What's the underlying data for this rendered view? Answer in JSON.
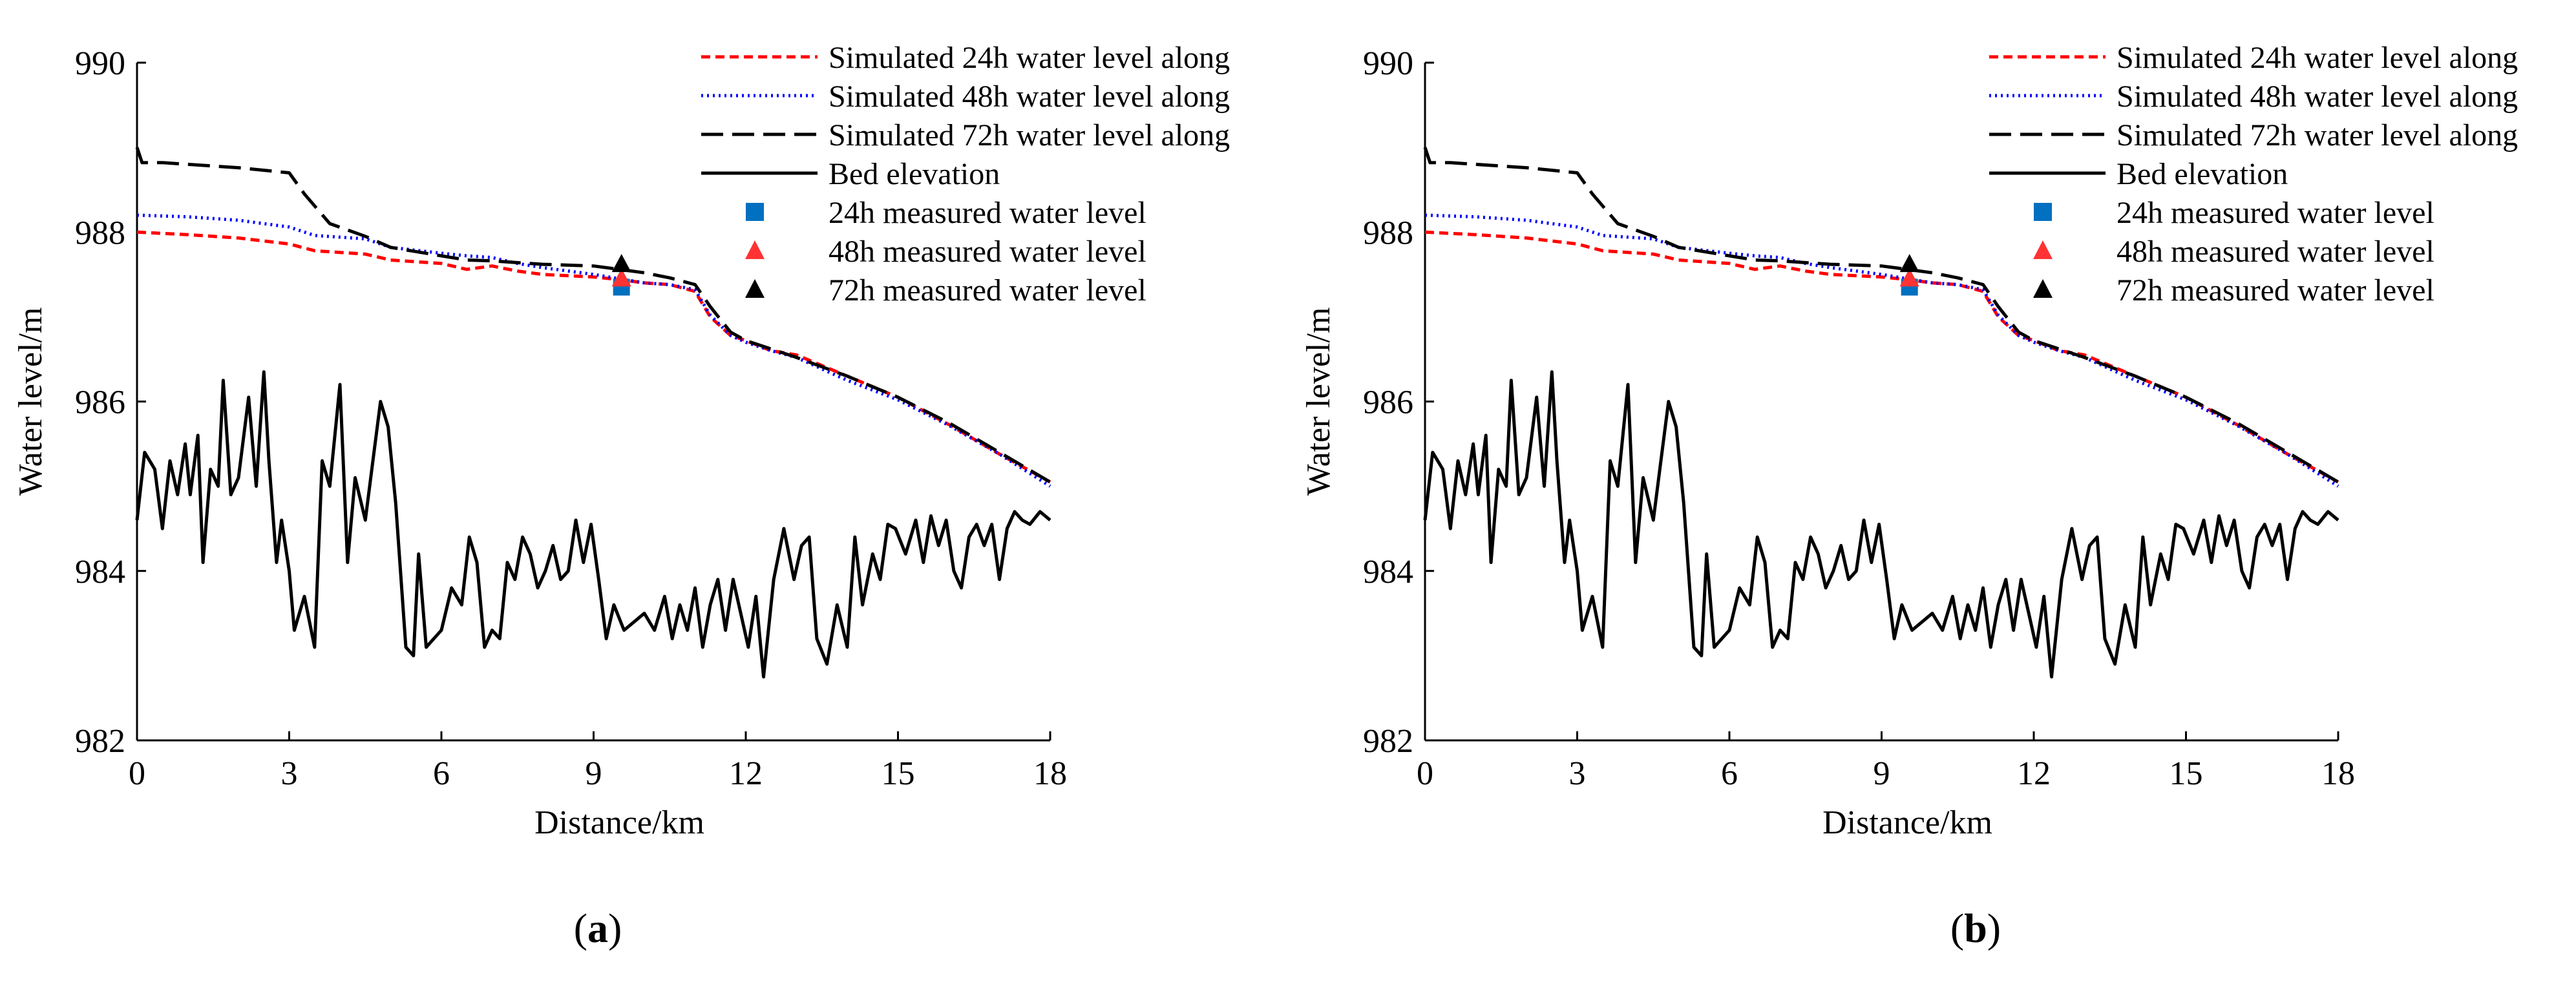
{
  "chart_data": [
    {
      "type": "line",
      "panel": "a",
      "xlabel": "Distance/km",
      "ylabel": "Water level/m",
      "xlim": [
        0,
        18
      ],
      "ylim": [
        982,
        990
      ],
      "xticks": [
        "0",
        "3",
        "6",
        "9",
        "12",
        "15",
        "18"
      ],
      "yticks": [
        "982",
        "984",
        "986",
        "988",
        "990"
      ],
      "legend_position": "top-right",
      "series": [
        {
          "name": "Simulated 24h water level along",
          "color": "#ff0000",
          "style": "short-dash",
          "x": [
            0,
            1,
            2,
            3,
            3.5,
            4.5,
            5,
            6,
            6.5,
            7,
            7.5,
            8,
            9,
            9.5,
            10,
            10.5,
            11,
            11.3,
            11.7,
            12,
            12.5,
            13,
            14,
            15,
            16,
            17,
            18
          ],
          "y": [
            988.0,
            987.97,
            987.93,
            987.86,
            987.78,
            987.74,
            987.67,
            987.63,
            987.56,
            987.6,
            987.54,
            987.5,
            987.47,
            987.44,
            987.4,
            987.38,
            987.3,
            987.0,
            986.78,
            986.72,
            986.6,
            986.55,
            986.3,
            986.05,
            985.73,
            985.38,
            985.05
          ]
        },
        {
          "name": "Simulated 48h water level along",
          "color": "#0000ff",
          "style": "dotted",
          "x": [
            0,
            1,
            2,
            3,
            3.5,
            4.5,
            5,
            6,
            6.5,
            7,
            7.5,
            8,
            9,
            9.5,
            10,
            10.5,
            11,
            11.3,
            11.7,
            12,
            12.5,
            13,
            14,
            15,
            16,
            17,
            18
          ],
          "y": [
            988.2,
            988.18,
            988.14,
            988.06,
            987.96,
            987.92,
            987.82,
            987.75,
            987.72,
            987.7,
            987.63,
            987.58,
            987.5,
            987.45,
            987.4,
            987.38,
            987.32,
            987.02,
            986.78,
            986.7,
            986.6,
            986.52,
            986.25,
            986.02,
            985.72,
            985.38,
            985.0
          ]
        },
        {
          "name": "Simulated 72h water level along",
          "color": "#000000",
          "style": "long-dash",
          "x": [
            0,
            0.1,
            0.5,
            1,
            2,
            3,
            3.3,
            3.8,
            4.5,
            5,
            6,
            6.5,
            7,
            7.5,
            8,
            9,
            9.5,
            10,
            10.5,
            11,
            11.3,
            11.7,
            12,
            12.5,
            13,
            14,
            15,
            16,
            17,
            18
          ],
          "y": [
            989.0,
            988.82,
            988.82,
            988.8,
            988.76,
            988.7,
            988.45,
            988.1,
            987.95,
            987.82,
            987.72,
            987.67,
            987.66,
            987.64,
            987.62,
            987.6,
            987.56,
            987.52,
            987.46,
            987.38,
            987.12,
            986.82,
            986.72,
            986.62,
            986.52,
            986.3,
            986.05,
            985.75,
            985.4,
            985.05
          ]
        },
        {
          "name": "Bed elevation",
          "color": "#000000",
          "style": "solid",
          "x": [
            0,
            0.15,
            0.35,
            0.5,
            0.65,
            0.8,
            0.95,
            1.05,
            1.2,
            1.3,
            1.45,
            1.6,
            1.7,
            1.85,
            2.0,
            2.2,
            2.35,
            2.5,
            2.6,
            2.75,
            2.85,
            3.0,
            3.1,
            3.3,
            3.5,
            3.65,
            3.8,
            4.0,
            4.15,
            4.3,
            4.5,
            4.65,
            4.8,
            4.95,
            5.1,
            5.3,
            5.45,
            5.55,
            5.7,
            5.85,
            6.0,
            6.2,
            6.4,
            6.55,
            6.7,
            6.85,
            7.0,
            7.15,
            7.3,
            7.45,
            7.6,
            7.75,
            7.9,
            8.05,
            8.2,
            8.35,
            8.5,
            8.65,
            8.8,
            8.95,
            9.1,
            9.25,
            9.4,
            9.6,
            9.8,
            10.0,
            10.2,
            10.4,
            10.55,
            10.7,
            10.85,
            11.0,
            11.15,
            11.3,
            11.45,
            11.6,
            11.75,
            11.9,
            12.05,
            12.2,
            12.35,
            12.55,
            12.75,
            12.95,
            13.1,
            13.25,
            13.4,
            13.6,
            13.8,
            14.0,
            14.15,
            14.3,
            14.5,
            14.65,
            14.8,
            14.95,
            15.15,
            15.35,
            15.5,
            15.65,
            15.8,
            15.95,
            16.1,
            16.25,
            16.4,
            16.55,
            16.7,
            16.85,
            17.0,
            17.15,
            17.3,
            17.45,
            17.6,
            17.8,
            18.0
          ],
          "y": [
            984.6,
            985.4,
            985.2,
            984.5,
            985.3,
            984.9,
            985.5,
            984.9,
            985.6,
            984.1,
            985.2,
            985.0,
            986.25,
            984.9,
            985.1,
            986.05,
            985.0,
            986.35,
            985.3,
            984.1,
            984.6,
            984.0,
            983.3,
            983.7,
            983.1,
            985.3,
            985.0,
            986.2,
            984.1,
            985.1,
            984.6,
            985.3,
            986.0,
            985.7,
            984.8,
            983.1,
            983.0,
            984.2,
            983.1,
            983.2,
            983.3,
            983.8,
            983.6,
            984.4,
            984.1,
            983.1,
            983.3,
            983.2,
            984.1,
            983.9,
            984.4,
            984.2,
            983.8,
            984.0,
            984.3,
            983.9,
            984.0,
            984.6,
            984.1,
            984.55,
            983.9,
            983.2,
            983.6,
            983.3,
            983.4,
            983.5,
            983.3,
            983.7,
            983.2,
            983.6,
            983.3,
            983.8,
            983.1,
            983.6,
            983.9,
            983.3,
            983.9,
            983.5,
            983.1,
            983.7,
            982.75,
            983.9,
            984.5,
            983.9,
            984.3,
            984.4,
            983.2,
            982.9,
            983.6,
            983.1,
            984.4,
            983.6,
            984.2,
            983.9,
            984.55,
            984.5,
            984.2,
            984.6,
            984.1,
            984.65,
            984.3,
            984.6,
            984.0,
            983.8,
            984.4,
            984.55,
            984.3,
            984.55,
            983.9,
            984.5,
            984.7,
            984.6,
            984.55,
            984.7,
            984.6
          ]
        }
      ],
      "measured": [
        {
          "name": "24h measured water level",
          "color": "#0070c0",
          "marker": "square",
          "x": 9.55,
          "y": 987.35
        },
        {
          "name": "48h measured water level",
          "color": "#ff3333",
          "marker": "triangle",
          "x": 9.55,
          "y": 987.45
        },
        {
          "name": "72h measured water level",
          "color": "#000000",
          "marker": "triangle",
          "x": 9.55,
          "y": 987.62
        }
      ]
    },
    {
      "type": "line",
      "panel": "b",
      "xlabel": "Distance/km",
      "ylabel": "Water level/m",
      "xlim": [
        0,
        18
      ],
      "ylim": [
        982,
        990
      ],
      "xticks": [
        "0",
        "3",
        "6",
        "9",
        "12",
        "15",
        "18"
      ],
      "yticks": [
        "982",
        "984",
        "986",
        "988",
        "990"
      ],
      "legend_position": "top-right",
      "series": [
        {
          "name": "Simulated 24h water level along",
          "color": "#ff0000",
          "style": "short-dash",
          "x": [
            0,
            1,
            2,
            3,
            3.5,
            4.5,
            5,
            6,
            6.5,
            7,
            7.5,
            8,
            9,
            9.5,
            10,
            10.5,
            11,
            11.3,
            11.7,
            12,
            12.5,
            13,
            14,
            15,
            16,
            17,
            18
          ],
          "y": [
            988.0,
            987.97,
            987.93,
            987.86,
            987.78,
            987.74,
            987.67,
            987.63,
            987.56,
            987.6,
            987.54,
            987.5,
            987.47,
            987.44,
            987.4,
            987.38,
            987.3,
            987.0,
            986.78,
            986.72,
            986.6,
            986.55,
            986.3,
            986.05,
            985.73,
            985.38,
            985.05
          ]
        },
        {
          "name": "Simulated 48h water level along",
          "color": "#0000ff",
          "style": "dotted",
          "x": [
            0,
            1,
            2,
            3,
            3.5,
            4.5,
            5,
            6,
            6.5,
            7,
            7.5,
            8,
            9,
            9.5,
            10,
            10.5,
            11,
            11.3,
            11.7,
            12,
            12.5,
            13,
            14,
            15,
            16,
            17,
            18
          ],
          "y": [
            988.2,
            988.18,
            988.14,
            988.06,
            987.96,
            987.92,
            987.82,
            987.75,
            987.72,
            987.7,
            987.63,
            987.58,
            987.5,
            987.45,
            987.4,
            987.38,
            987.32,
            987.02,
            986.78,
            986.7,
            986.6,
            986.52,
            986.25,
            986.02,
            985.72,
            985.38,
            985.0
          ]
        },
        {
          "name": "Simulated 72h water level along",
          "color": "#000000",
          "style": "long-dash",
          "x": [
            0,
            0.1,
            0.5,
            1,
            2,
            3,
            3.3,
            3.8,
            4.5,
            5,
            6,
            6.5,
            7,
            7.5,
            8,
            9,
            9.5,
            10,
            10.5,
            11,
            11.3,
            11.7,
            12,
            12.5,
            13,
            14,
            15,
            16,
            17,
            18
          ],
          "y": [
            989.0,
            988.82,
            988.82,
            988.8,
            988.76,
            988.7,
            988.45,
            988.1,
            987.95,
            987.82,
            987.72,
            987.67,
            987.66,
            987.64,
            987.62,
            987.6,
            987.56,
            987.52,
            987.46,
            987.38,
            987.12,
            986.82,
            986.72,
            986.62,
            986.52,
            986.3,
            986.05,
            985.75,
            985.4,
            985.05
          ]
        },
        {
          "name": "Bed elevation",
          "color": "#000000",
          "style": "solid",
          "x": [
            0,
            0.15,
            0.35,
            0.5,
            0.65,
            0.8,
            0.95,
            1.05,
            1.2,
            1.3,
            1.45,
            1.6,
            1.7,
            1.85,
            2.0,
            2.2,
            2.35,
            2.5,
            2.6,
            2.75,
            2.85,
            3.0,
            3.1,
            3.3,
            3.5,
            3.65,
            3.8,
            4.0,
            4.15,
            4.3,
            4.5,
            4.65,
            4.8,
            4.95,
            5.1,
            5.3,
            5.45,
            5.55,
            5.7,
            5.85,
            6.0,
            6.2,
            6.4,
            6.55,
            6.7,
            6.85,
            7.0,
            7.15,
            7.3,
            7.45,
            7.6,
            7.75,
            7.9,
            8.05,
            8.2,
            8.35,
            8.5,
            8.65,
            8.8,
            8.95,
            9.1,
            9.25,
            9.4,
            9.6,
            9.8,
            10.0,
            10.2,
            10.4,
            10.55,
            10.7,
            10.85,
            11.0,
            11.15,
            11.3,
            11.45,
            11.6,
            11.75,
            11.9,
            12.05,
            12.2,
            12.35,
            12.55,
            12.75,
            12.95,
            13.1,
            13.25,
            13.4,
            13.6,
            13.8,
            14.0,
            14.15,
            14.3,
            14.5,
            14.65,
            14.8,
            14.95,
            15.15,
            15.35,
            15.5,
            15.65,
            15.8,
            15.95,
            16.1,
            16.25,
            16.4,
            16.55,
            16.7,
            16.85,
            17.0,
            17.15,
            17.3,
            17.45,
            17.6,
            17.8,
            18.0
          ],
          "y": [
            984.6,
            985.4,
            985.2,
            984.5,
            985.3,
            984.9,
            985.5,
            984.9,
            985.6,
            984.1,
            985.2,
            985.0,
            986.25,
            984.9,
            985.1,
            986.05,
            985.0,
            986.35,
            985.3,
            984.1,
            984.6,
            984.0,
            983.3,
            983.7,
            983.1,
            985.3,
            985.0,
            986.2,
            984.1,
            985.1,
            984.6,
            985.3,
            986.0,
            985.7,
            984.8,
            983.1,
            983.0,
            984.2,
            983.1,
            983.2,
            983.3,
            983.8,
            983.6,
            984.4,
            984.1,
            983.1,
            983.3,
            983.2,
            984.1,
            983.9,
            984.4,
            984.2,
            983.8,
            984.0,
            984.3,
            983.9,
            984.0,
            984.6,
            984.1,
            984.55,
            983.9,
            983.2,
            983.6,
            983.3,
            983.4,
            983.5,
            983.3,
            983.7,
            983.2,
            983.6,
            983.3,
            983.8,
            983.1,
            983.6,
            983.9,
            983.3,
            983.9,
            983.5,
            983.1,
            983.7,
            982.75,
            983.9,
            984.5,
            983.9,
            984.3,
            984.4,
            983.2,
            982.9,
            983.6,
            983.1,
            984.4,
            983.6,
            984.2,
            983.9,
            984.55,
            984.5,
            984.2,
            984.6,
            984.1,
            984.65,
            984.3,
            984.6,
            984.0,
            983.8,
            984.4,
            984.55,
            984.3,
            984.55,
            983.9,
            984.5,
            984.7,
            984.6,
            984.55,
            984.7,
            984.6
          ]
        }
      ],
      "measured": [
        {
          "name": "24h measured water level",
          "color": "#0070c0",
          "marker": "square",
          "x": 9.55,
          "y": 987.35
        },
        {
          "name": "48h measured water level",
          "color": "#ff3333",
          "marker": "triangle",
          "x": 9.55,
          "y": 987.45
        },
        {
          "name": "72h measured water level",
          "color": "#000000",
          "marker": "triangle",
          "x": 9.55,
          "y": 987.62
        }
      ]
    }
  ],
  "panels": {
    "a": {
      "label": "a"
    },
    "b": {
      "label": "b"
    }
  }
}
